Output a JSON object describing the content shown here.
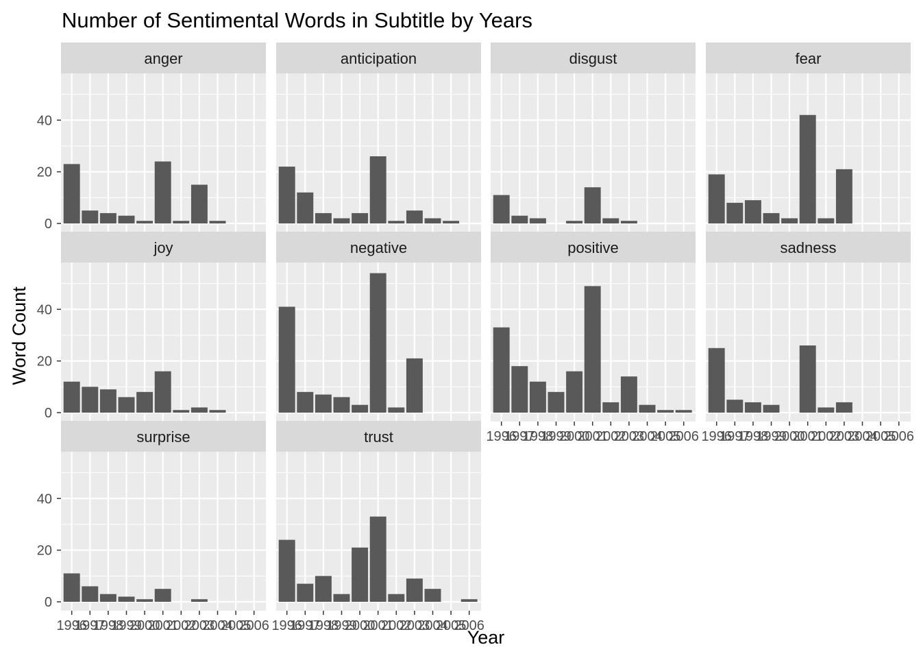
{
  "chart_data": {
    "type": "bar",
    "title": "Number of Sentimental Words in Subtitle by Years",
    "xlabel": "Year",
    "ylabel": "Word Count",
    "ylim": [
      0,
      56
    ],
    "y_ticks": [
      0,
      20,
      40
    ],
    "x_ticks": [
      "1996",
      "1997",
      "1998",
      "1999",
      "2000",
      "2001",
      "2002",
      "2003",
      "2004",
      "2005",
      "2006"
    ],
    "categories": [
      "1996",
      "1997",
      "1998",
      "1999",
      "2000",
      "2001",
      "2002",
      "2003",
      "2004",
      "2005",
      "2006"
    ],
    "grid": true,
    "facets": [
      {
        "name": "anger",
        "values": [
          23,
          5,
          4,
          3,
          1,
          24,
          1,
          15,
          1,
          0,
          0
        ]
      },
      {
        "name": "anticipation",
        "values": [
          22,
          12,
          4,
          2,
          4,
          26,
          1,
          5,
          2,
          1,
          0
        ]
      },
      {
        "name": "disgust",
        "values": [
          11,
          3,
          2,
          0,
          1,
          14,
          2,
          1,
          0,
          0,
          0
        ]
      },
      {
        "name": "fear",
        "values": [
          19,
          8,
          9,
          4,
          2,
          42,
          2,
          21,
          0,
          0,
          0
        ]
      },
      {
        "name": "joy",
        "values": [
          12,
          10,
          9,
          6,
          8,
          16,
          1,
          2,
          1,
          0,
          0
        ]
      },
      {
        "name": "negative",
        "values": [
          41,
          8,
          7,
          6,
          3,
          54,
          2,
          21,
          0,
          0,
          0
        ]
      },
      {
        "name": "positive",
        "values": [
          33,
          18,
          12,
          8,
          16,
          49,
          4,
          14,
          3,
          1,
          1
        ]
      },
      {
        "name": "sadness",
        "values": [
          25,
          5,
          4,
          3,
          0,
          26,
          2,
          4,
          0,
          0,
          0
        ]
      },
      {
        "name": "surprise",
        "values": [
          11,
          6,
          3,
          2,
          1,
          5,
          0,
          1,
          0,
          0,
          0
        ]
      },
      {
        "name": "trust",
        "values": [
          24,
          7,
          10,
          3,
          21,
          33,
          3,
          9,
          5,
          0,
          1
        ]
      }
    ],
    "colors": {
      "bar": "#595959",
      "panel_bg": "#ebebeb",
      "strip_bg": "#d9d9d9",
      "grid": "#ffffff",
      "tick_text": "#4d4d4d",
      "tick_mark": "#333333"
    }
  }
}
